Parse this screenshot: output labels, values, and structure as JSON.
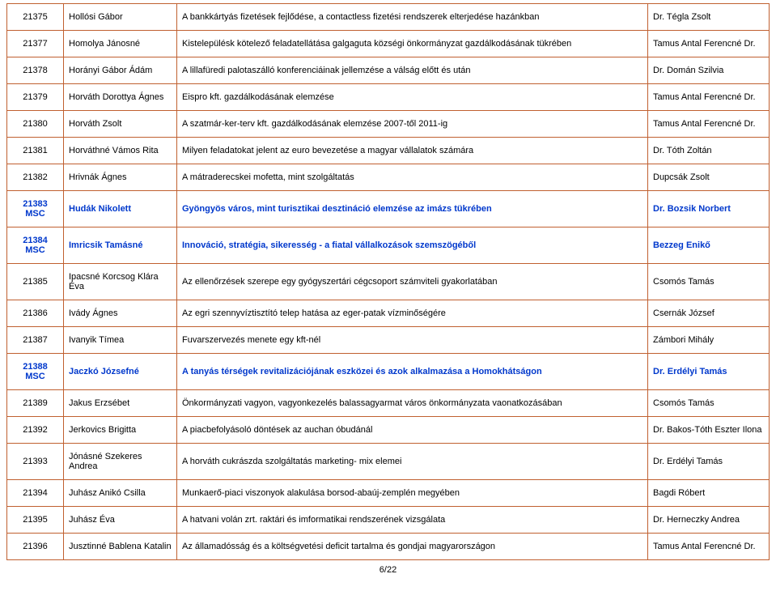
{
  "rows": [
    {
      "hl": false,
      "id": "21375",
      "name": "Hollósi Gábor",
      "title": "A bankkártyás fizetések fejlődése, a contactless fizetési rendszerek elterjedése hazánkban",
      "sup": "Dr. Tégla Zsolt"
    },
    {
      "hl": false,
      "id": "21377",
      "name": "Homolya Jánosné",
      "title": "Kistelepülésk kötelező feladatellátása galgaguta községi önkormányzat gazdálkodásának tükrében",
      "sup": "Tamus Antal Ferencné Dr."
    },
    {
      "hl": false,
      "id": "21378",
      "name": "Horányi Gábor Ádám",
      "title": "A lillafüredi palotaszálló konferenciáinak jellemzése a válság előtt és után",
      "sup": "Dr. Domán Szilvia"
    },
    {
      "hl": false,
      "id": "21379",
      "name": "Horváth Dorottya Ágnes",
      "title": "Eispro kft. gazdálkodásának elemzése",
      "sup": "Tamus Antal Ferencné Dr."
    },
    {
      "hl": false,
      "id": "21380",
      "name": "Horváth Zsolt",
      "title": "A szatmár-ker-terv kft. gazdálkodásának elemzése 2007-től 2011-ig",
      "sup": "Tamus Antal Ferencné Dr."
    },
    {
      "hl": false,
      "id": "21381",
      "name": "Horváthné Vámos Rita",
      "title": "Milyen feladatokat jelent az euro bevezetése a magyar vállalatok számára",
      "sup": "Dr. Tóth Zoltán"
    },
    {
      "hl": false,
      "id": "21382",
      "name": "Hrivnák Ágnes",
      "title": "A mátraderecskei mofetta, mint szolgáltatás",
      "sup": "Dupcsák Zsolt"
    },
    {
      "hl": true,
      "id": "21383 MSC",
      "name": "Hudák Nikolett",
      "title": "Gyöngyös város, mint turisztikai desztináció elemzése az imázs tükrében",
      "sup": "Dr. Bozsik Norbert"
    },
    {
      "hl": true,
      "id": "21384 MSC",
      "name": "Imricsik Tamásné",
      "title": "Innováció, stratégia, sikeresség - a fiatal vállalkozások szemszögéből",
      "sup": "Bezzeg Enikő"
    },
    {
      "hl": false,
      "id": "21385",
      "name": "Ipacsné Korcsog  Klára Éva",
      "title": "Az ellenőrzések szerepe egy gyógyszertári cégcsoport számviteli gyakorlatában",
      "sup": "Csomós Tamás"
    },
    {
      "hl": false,
      "id": "21386",
      "name": "Ivády Ágnes",
      "title": "Az egri szennyvíztisztító telep hatása az eger-patak vízminőségére",
      "sup": "Csernák József"
    },
    {
      "hl": false,
      "id": "21387",
      "name": "Ivanyik Tímea",
      "title": "Fuvarszervezés menete egy kft-nél",
      "sup": "Zámbori Mihály"
    },
    {
      "hl": true,
      "id": "21388 MSC",
      "name": "Jaczkó Józsefné",
      "title": "A tanyás térségek revitalizációjának eszközei és azok alkalmazása a Homokhátságon",
      "sup": "Dr. Erdélyi Tamás"
    },
    {
      "hl": false,
      "id": "21389",
      "name": "Jakus Erzsébet",
      "title": "Önkormányzati vagyon, vagyonkezelés balassagyarmat város önkormányzata vaonatkozásában",
      "sup": "Csomós Tamás"
    },
    {
      "hl": false,
      "id": "21392",
      "name": "Jerkovics Brigitta",
      "title": "A piacbefolyásoló döntések az auchan óbudánál",
      "sup": "Dr. Bakos-Tóth Eszter Ilona"
    },
    {
      "hl": false,
      "id": "21393",
      "name": "Jónásné Szekeres Andrea",
      "title": "A horváth cukrászda szolgáltatás marketing- mix elemei",
      "sup": "Dr. Erdélyi Tamás"
    },
    {
      "hl": false,
      "id": "21394",
      "name": "Juhász Anikó Csilla",
      "title": "Munkaerő-piaci viszonyok alakulása borsod-abaúj-zemplén megyében",
      "sup": "Bagdi Róbert"
    },
    {
      "hl": false,
      "id": "21395",
      "name": "Juhász Éva",
      "title": "A hatvani volán zrt. raktári és imformatikai rendszerének vizsgálata",
      "sup": "Dr. Herneczky Andrea"
    },
    {
      "hl": false,
      "id": "21396",
      "name": "Jusztinné Bablena Katalin",
      "title": "Az államadósság és a költségvetési deficit tartalma és gondjai magyarországon",
      "sup": "Tamus Antal Ferencné Dr."
    }
  ],
  "pagenum": "6/22"
}
